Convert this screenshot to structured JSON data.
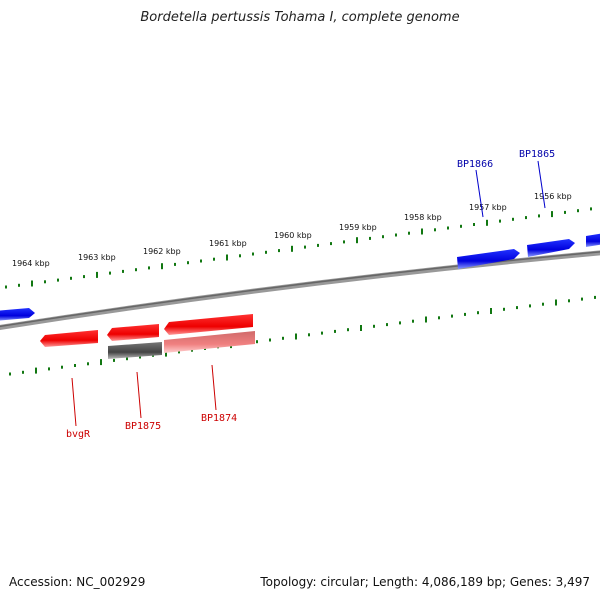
{
  "title": "Bordetella pertussis Tohama I, complete genome",
  "footer": {
    "accession": "Accession: NC_002929",
    "summary": "Topology: circular; Length: 4,086,189 bp; Genes: 3,497"
  },
  "scale_labels": [
    "1964 kbp",
    "1963 kbp",
    "1962 kbp",
    "1961 kbp",
    "1960 kbp",
    "1959 kbp",
    "1958 kbp",
    "1957 kbp",
    "1956 kbp"
  ],
  "gene_labels": {
    "bp1866": "BP1866",
    "bp1865": "BP1865",
    "bvgr": "bvgR",
    "bp1875": "BP1875",
    "bp1874": "BP1874"
  },
  "colors": {
    "forward": "#0000ee",
    "reverse": "#ee0000",
    "reverse_light": "#f08080",
    "pseudo": "#555555",
    "ticks": "#117711",
    "backbone": "#808080",
    "forward_label": "#0000aa",
    "reverse_label": "#cc0000"
  }
}
